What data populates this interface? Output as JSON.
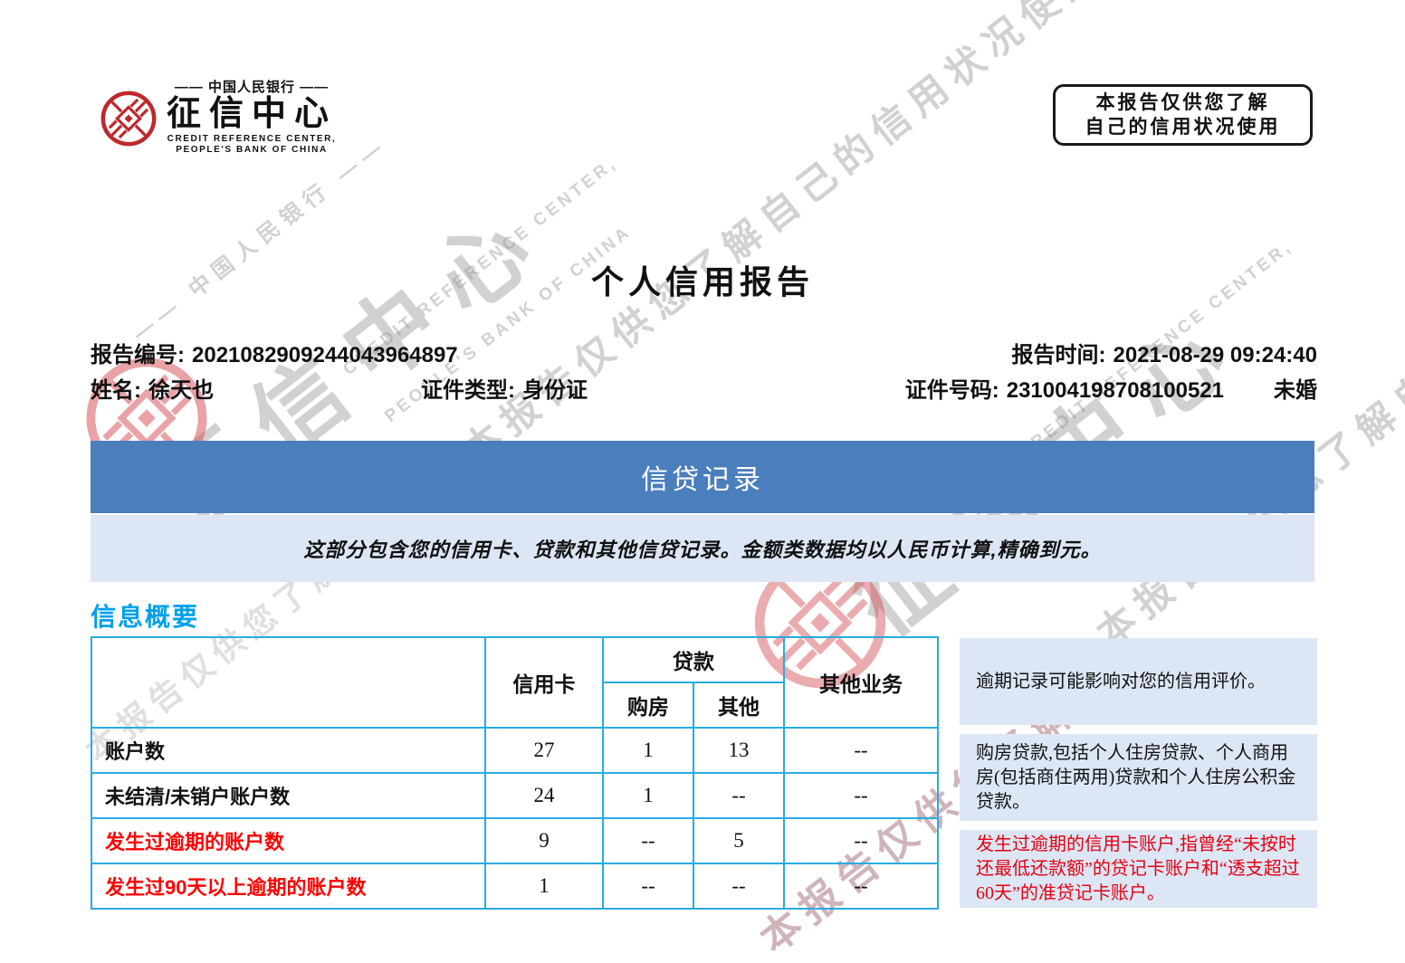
{
  "logo": {
    "bank_line": "—— 中国人民银行 ——",
    "center_name": "征信中心",
    "en_line1": "CREDIT REFERENCE CENTER,",
    "en_line2": "PEOPLE'S BANK OF CHINA"
  },
  "notice_box": {
    "line1": "本报告仅供您了解",
    "line2": "自己的信用状况使用"
  },
  "page_title": "个人信用报告",
  "report_meta": {
    "report_no_label": "报告编号:",
    "report_no": "2021082909244043964897",
    "report_time_label": "报告时间:",
    "report_time": "2021-08-29 09:24:40",
    "name_label": "姓名:",
    "name": "徐天也",
    "id_type_label": "证件类型:",
    "id_type": "身份证",
    "id_no_label": "证件号码:",
    "id_no": "231004198708100521",
    "marital_status": "未婚"
  },
  "section_banner": {
    "title": "信贷记录",
    "description": "这部分包含您的信用卡、贷款和其他信贷记录。金额类数据均以人民币计算,精确到元。"
  },
  "summary_heading": "信息概要",
  "summary_table": {
    "loan_group_header": "贷款",
    "col_headers": {
      "credit_card": "信用卡",
      "loan_house": "购房",
      "loan_other": "其他",
      "other_business": "其他业务"
    },
    "rows": [
      {
        "label": "账户数",
        "alert": false,
        "cells": [
          "27",
          "1",
          "13",
          "--"
        ]
      },
      {
        "label": "未结清/未销户账户数",
        "alert": false,
        "cells": [
          "24",
          "1",
          "--",
          "--"
        ]
      },
      {
        "label": "发生过逾期的账户数",
        "alert": true,
        "cells": [
          "9",
          "--",
          "5",
          "--"
        ]
      },
      {
        "label": "发生过90天以上逾期的账户数",
        "alert": true,
        "cells": [
          "1",
          "--",
          "--",
          "--"
        ]
      }
    ]
  },
  "side_notes": [
    {
      "text": "逾期记录可能影响对您的信用评价。",
      "alert": false
    },
    {
      "text": "购房贷款,包括个人住房贷款、个人商用房(包括商住两用)贷款和个人住房公积金贷款。",
      "alert": false
    },
    {
      "text": "发生过逾期的信用卡账户,指曾经“未按时还最低还款额”的贷记卡账户和“透支超过60天”的准贷记卡账户。",
      "alert": true
    }
  ],
  "watermark": {
    "notice": "本报告仅供您了解自己的信用状况使用",
    "notice_short": "本报告仅供您了解"
  },
  "colors": {
    "banner_blue": "#4A7EBC",
    "band_blue": "#DCE6F4",
    "table_border": "#29ABE2",
    "heading_blue": "#00A0E9",
    "alert_red": "#FF0000",
    "note_red": "#E60012",
    "seal_red": "#C0272D"
  }
}
